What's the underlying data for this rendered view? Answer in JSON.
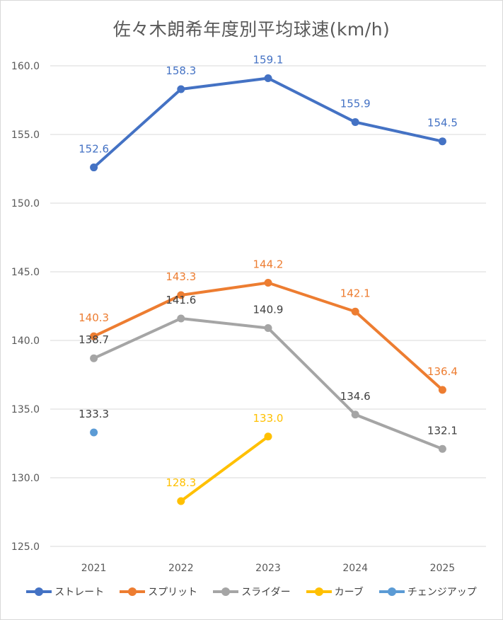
{
  "title": "佐々木朗希年度別平均球速(km/h)",
  "chart_data": {
    "type": "line",
    "title": "佐々木朗希年度別平均球速(km/h)",
    "categories": [
      "2021",
      "2022",
      "2023",
      "2024",
      "2025"
    ],
    "ylim": [
      125,
      160
    ],
    "ytick_step": 5,
    "yticks": [
      "125.0",
      "130.0",
      "135.0",
      "140.0",
      "145.0",
      "150.0",
      "155.0",
      "160.0"
    ],
    "grid": true,
    "legend_position": "bottom",
    "series": [
      {
        "name": "ストレート",
        "color": "#4472c4",
        "values": [
          152.6,
          158.3,
          159.1,
          155.9,
          154.5
        ],
        "labels": [
          "152.6",
          "158.3",
          "159.1",
          "155.9",
          "154.5"
        ]
      },
      {
        "name": "スプリット",
        "color": "#ed7d31",
        "values": [
          140.3,
          143.3,
          144.2,
          142.1,
          136.4
        ],
        "labels": [
          "140.3",
          "143.3",
          "144.2",
          "142.1",
          "136.4"
        ]
      },
      {
        "name": "スライダー",
        "color": "#a5a5a5",
        "label_color": "#404040",
        "values": [
          138.7,
          141.6,
          140.9,
          134.6,
          132.1
        ],
        "labels": [
          "138.7",
          "141.6",
          "140.9",
          "134.6",
          "132.1"
        ]
      },
      {
        "name": "カーブ",
        "color": "#ffc000",
        "values": [
          null,
          128.3,
          133.0,
          null,
          null
        ],
        "labels": [
          null,
          "128.3",
          "133.0",
          null,
          null
        ]
      },
      {
        "name": "チェンジアップ",
        "color": "#5b9bd5",
        "label_color": "#404040",
        "values": [
          133.3,
          null,
          null,
          null,
          null
        ],
        "labels": [
          "133.3",
          null,
          null,
          null,
          null
        ]
      }
    ]
  }
}
